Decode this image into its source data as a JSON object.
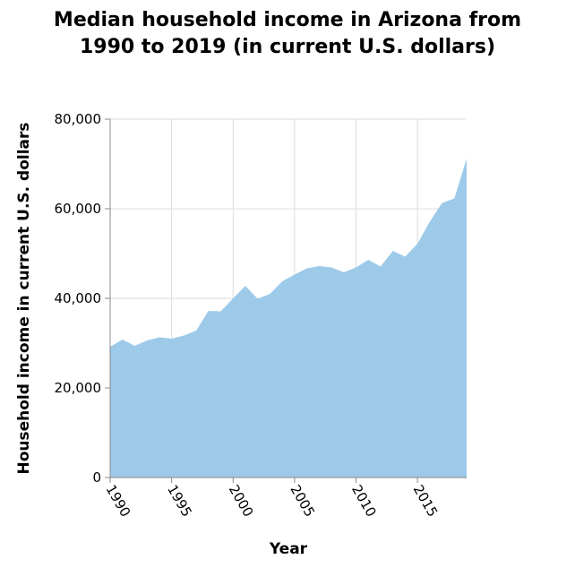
{
  "chart_data": {
    "type": "area",
    "title": "Median household income in Arizona from 1990 to 2019 (in current U.S. dollars)",
    "title_lines": [
      "Median household income in Arizona from",
      "1990 to 2019 (in current U.S. dollars)"
    ],
    "xlabel": "Year",
    "ylabel": "Household income in current U.S. dollars",
    "xlim": [
      1990,
      2019
    ],
    "ylim": [
      0,
      80000
    ],
    "x_ticks": [
      1990,
      1995,
      2000,
      2005,
      2010,
      2015
    ],
    "y_ticks": [
      0,
      20000,
      40000,
      60000,
      80000
    ],
    "x_tick_labels": [
      "1990",
      "1995",
      "2000",
      "2005",
      "2010",
      "2015"
    ],
    "y_tick_labels": [
      "0",
      "20,000",
      "40,000",
      "60,000",
      "80,000"
    ],
    "grid": true,
    "legend": "none",
    "fill_color": "#9ecae9",
    "series": [
      {
        "x": [
          1990,
          1991,
          1992,
          1993,
          1994,
          1995,
          1996,
          1997,
          1998,
          1999,
          2000,
          2001,
          2002,
          2003,
          2004,
          2005,
          2006,
          2007,
          2008,
          2009,
          2010,
          2011,
          2012,
          2013,
          2014,
          2015,
          2016,
          2017,
          2018,
          2019
        ],
        "values": [
          29200,
          30800,
          29400,
          30600,
          31300,
          31000,
          31700,
          32800,
          37200,
          37100,
          40000,
          42800,
          39900,
          41000,
          43800,
          45300,
          46700,
          47200,
          46900,
          45800,
          46900,
          48600,
          47100,
          50600,
          49300,
          52200,
          57100,
          61300,
          62300,
          71200
        ]
      }
    ]
  }
}
